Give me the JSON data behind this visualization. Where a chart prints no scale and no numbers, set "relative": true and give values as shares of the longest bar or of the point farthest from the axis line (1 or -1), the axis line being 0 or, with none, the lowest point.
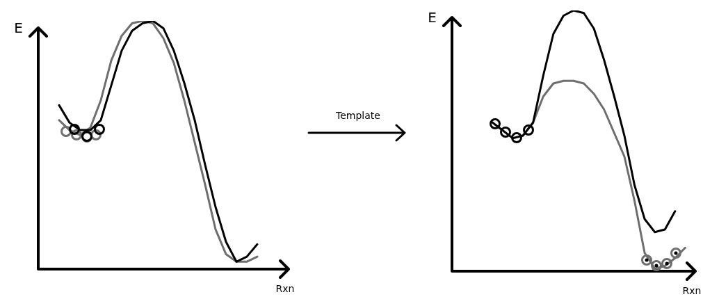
{
  "chart_data": [
    {
      "type": "line",
      "relative": true,
      "xlabel": "Rxn",
      "ylabel": "E",
      "categories": [
        null,
        null,
        null,
        null,
        null,
        null,
        null,
        null,
        null,
        null,
        null,
        null,
        null,
        null,
        null,
        null,
        null,
        null,
        null,
        null,
        null,
        null,
        null,
        null,
        null
      ],
      "series": [
        {
          "type": "line",
          "color": "#000000",
          "values": [
            null,
            null,
            0.66,
            0.59,
            0.56,
            0.56,
            0.6,
            0.74,
            0.88,
            0.96,
            0.99,
            1,
            0.97,
            0.88,
            0.75,
            0.6,
            0.42,
            0.25,
            0.11,
            0.03,
            0.05,
            0.1,
            null,
            null,
            null
          ]
        },
        {
          "type": "line",
          "color": "#6e6e6e",
          "values": [
            null,
            null,
            0.6,
            0.56,
            0.54,
            0.57,
            0.68,
            0.84,
            0.94,
            0.99,
            1,
            0.99,
            0.93,
            0.83,
            0.68,
            0.51,
            0.34,
            0.16,
            0.06,
            0.03,
            0.03,
            0.05,
            null,
            null,
            null
          ]
        }
      ]
    },
    {
      "type": "other",
      "annotations": [
        "Template"
      ]
    },
    {
      "type": "line",
      "relative": true,
      "xlabel": "Rxn",
      "ylabel": "E",
      "categories": [
        null,
        null,
        null,
        null,
        null,
        null,
        null,
        null,
        null,
        null,
        null,
        null,
        null,
        null,
        null,
        null,
        null,
        null,
        null,
        null,
        null,
        null,
        null,
        null,
        null
      ],
      "series": [
        {
          "type": "line",
          "color": "#000000",
          "values": [
            null,
            null,
            null,
            null,
            0.57,
            0.54,
            0.51,
            0.52,
            0.57,
            0.75,
            0.91,
            0.98,
            1,
            0.99,
            0.93,
            0.81,
            0.67,
            0.52,
            0.33,
            0.2,
            0.15,
            0.16,
            0.23,
            null,
            null
          ]
        },
        {
          "type": "line",
          "color": "#6e6e6e",
          "values": [
            null,
            null,
            null,
            null,
            null,
            null,
            null,
            0.52,
            0.57,
            0.67,
            0.72,
            0.73,
            0.73,
            0.72,
            0.68,
            0.62,
            0.53,
            0.44,
            0.27,
            0.07,
            0.01,
            0.02,
            0.05,
            0.09,
            null
          ]
        }
      ]
    }
  ]
}
